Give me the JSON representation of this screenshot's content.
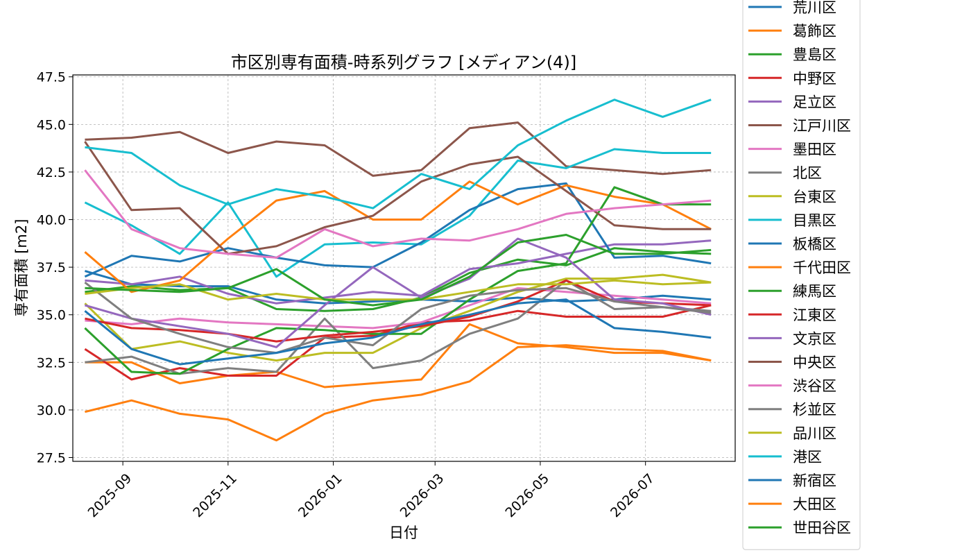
{
  "chart_data": {
    "type": "line",
    "title": "市区別専有面積-時系列グラフ [メディアン(4)]",
    "xlabel": "日付",
    "ylabel": "専有面積 [m2]",
    "x_range": [
      "2025-08-03",
      "2026-08-22"
    ],
    "ylim": [
      27.3,
      47.6
    ],
    "grid": true,
    "legend_position": "right",
    "x_ticks": [
      "2025-09",
      "2025-11",
      "2026-01",
      "2026-03",
      "2026-05",
      "2026-07"
    ],
    "y_ticks": [
      "27.5",
      "30.0",
      "32.5",
      "35.0",
      "37.5",
      "40.0",
      "42.5",
      "45.0",
      "47.5"
    ],
    "x": [
      "2025-08-10",
      "2025-09-06",
      "2025-10-04",
      "2025-11-01",
      "2025-11-29",
      "2025-12-27",
      "2026-01-24",
      "2026-02-21",
      "2026-03-21",
      "2026-04-18",
      "2026-05-16",
      "2026-06-13",
      "2026-07-11",
      "2026-08-08"
    ],
    "series": [
      {
        "name": "荒川区",
        "color": "#1f77b4",
        "values": [
          37.3,
          36.6,
          36.5,
          36.5,
          35.8,
          35.6,
          35.7,
          35.8,
          35.7,
          35.9,
          35.7,
          35.8,
          36.0,
          35.8
        ]
      },
      {
        "name": "葛飾区",
        "color": "#ff7f0e",
        "values": [
          32.5,
          32.5,
          31.4,
          31.8,
          32.0,
          31.2,
          31.4,
          31.6,
          34.5,
          33.5,
          33.3,
          33.0,
          33.0,
          32.6
        ]
      },
      {
        "name": "豊島区",
        "color": "#2ca02c",
        "values": [
          36.2,
          36.5,
          36.3,
          36.4,
          35.3,
          35.2,
          35.3,
          35.9,
          37.2,
          37.9,
          37.6,
          38.5,
          38.3,
          38.2
        ]
      },
      {
        "name": "中野区",
        "color": "#d62728",
        "values": [
          33.2,
          31.6,
          32.2,
          31.8,
          31.8,
          33.8,
          33.9,
          34.6,
          34.7,
          35.2,
          34.9,
          34.9,
          34.9,
          35.5
        ]
      },
      {
        "name": "足立区",
        "color": "#9467bd",
        "values": [
          36.8,
          36.6,
          37.0,
          36.1,
          35.6,
          35.9,
          36.2,
          36.0,
          37.4,
          37.7,
          38.2,
          38.7,
          38.7,
          38.9
        ]
      },
      {
        "name": "江戸川区",
        "color": "#8c564b",
        "values": [
          44.2,
          44.3,
          44.6,
          43.5,
          44.1,
          43.9,
          42.3,
          42.6,
          44.8,
          45.1,
          42.8,
          42.6,
          42.4,
          42.6
        ]
      },
      {
        "name": "墨田区",
        "color": "#e377c2",
        "values": [
          34.7,
          34.5,
          34.8,
          34.6,
          34.5,
          34.4,
          34.3,
          34.6,
          35.5,
          36.4,
          36.2,
          36.0,
          35.8,
          35.6
        ]
      },
      {
        "name": "北区",
        "color": "#7f7f7f",
        "values": [
          32.5,
          32.8,
          31.9,
          32.2,
          32.0,
          34.8,
          32.2,
          32.6,
          34.0,
          34.8,
          36.8,
          35.3,
          35.4,
          35.2
        ]
      },
      {
        "name": "台東区",
        "color": "#bcbd22",
        "values": [
          35.6,
          33.2,
          33.6,
          33.0,
          32.6,
          33.0,
          33.0,
          34.3,
          35.2,
          36.2,
          36.9,
          36.9,
          37.1,
          36.7
        ]
      },
      {
        "name": "目黒区",
        "color": "#17becf",
        "values": [
          40.9,
          39.7,
          38.2,
          40.9,
          37.0,
          38.7,
          38.8,
          38.7,
          40.2,
          43.1,
          42.7,
          43.7,
          43.5,
          43.5
        ]
      },
      {
        "name": "板橋区",
        "color": "#1f77b4",
        "values": [
          37.0,
          38.1,
          37.8,
          38.5,
          38.0,
          37.6,
          37.5,
          38.8,
          40.5,
          41.6,
          41.9,
          38.0,
          38.1,
          37.7
        ]
      },
      {
        "name": "千代田区",
        "color": "#ff7f0e",
        "values": [
          38.3,
          36.2,
          36.8,
          39.0,
          41.0,
          41.5,
          40.0,
          40.0,
          42.0,
          40.8,
          41.8,
          41.2,
          40.8,
          39.5
        ]
      },
      {
        "name": "練馬区",
        "color": "#2ca02c",
        "values": [
          34.3,
          32.0,
          31.9,
          33.2,
          34.3,
          34.2,
          34.0,
          34.0,
          35.8,
          37.3,
          37.7,
          41.7,
          40.8,
          40.8
        ]
      },
      {
        "name": "江東区",
        "color": "#d62728",
        "values": [
          34.8,
          34.3,
          34.2,
          34.0,
          33.6,
          33.9,
          34.1,
          34.4,
          34.9,
          35.7,
          36.8,
          35.7,
          35.6,
          35.5
        ]
      },
      {
        "name": "文京区",
        "color": "#9467bd",
        "values": [
          35.5,
          34.8,
          34.4,
          34.0,
          33.3,
          35.5,
          37.5,
          35.9,
          36.9,
          39.0,
          38.0,
          35.8,
          35.6,
          35.0
        ]
      },
      {
        "name": "中央区",
        "color": "#8c564b",
        "values": [
          44.1,
          40.5,
          40.6,
          38.2,
          38.6,
          39.6,
          40.2,
          42.0,
          42.9,
          43.3,
          41.5,
          39.7,
          39.5,
          39.5
        ]
      },
      {
        "name": "渋谷区",
        "color": "#e377c2",
        "values": [
          42.6,
          39.5,
          38.5,
          38.2,
          38.0,
          39.5,
          38.6,
          39.0,
          38.9,
          39.5,
          40.3,
          40.6,
          40.8,
          41.0
        ]
      },
      {
        "name": "杉並区",
        "color": "#7f7f7f",
        "values": [
          36.7,
          34.8,
          34.0,
          33.3,
          33.0,
          33.8,
          33.4,
          35.3,
          36.0,
          36.3,
          36.4,
          35.7,
          35.4,
          35.1
        ]
      },
      {
        "name": "品川区",
        "color": "#bcbd22",
        "values": [
          36.1,
          36.4,
          36.6,
          35.8,
          36.1,
          35.8,
          35.8,
          35.8,
          36.2,
          36.6,
          36.6,
          36.8,
          36.6,
          36.7
        ]
      },
      {
        "name": "港区",
        "color": "#17becf",
        "values": [
          43.8,
          43.5,
          41.8,
          40.8,
          41.6,
          41.2,
          40.6,
          42.4,
          41.6,
          43.9,
          45.2,
          46.3,
          45.4,
          46.3
        ]
      },
      {
        "name": "新宿区",
        "color": "#1f77b4",
        "values": [
          35.2,
          33.2,
          32.4,
          32.7,
          33.0,
          33.5,
          33.8,
          34.5,
          35.0,
          35.6,
          35.8,
          34.3,
          34.1,
          33.8
        ]
      },
      {
        "name": "大田区",
        "color": "#ff7f0e",
        "values": [
          29.9,
          30.5,
          29.8,
          29.5,
          28.4,
          29.8,
          30.5,
          30.8,
          31.5,
          33.3,
          33.4,
          33.2,
          33.1,
          32.6
        ]
      },
      {
        "name": "世田谷区",
        "color": "#2ca02c",
        "values": [
          36.4,
          36.3,
          36.2,
          36.4,
          37.4,
          35.8,
          35.5,
          35.8,
          37.0,
          38.8,
          39.2,
          38.2,
          38.2,
          38.4
        ]
      }
    ]
  }
}
